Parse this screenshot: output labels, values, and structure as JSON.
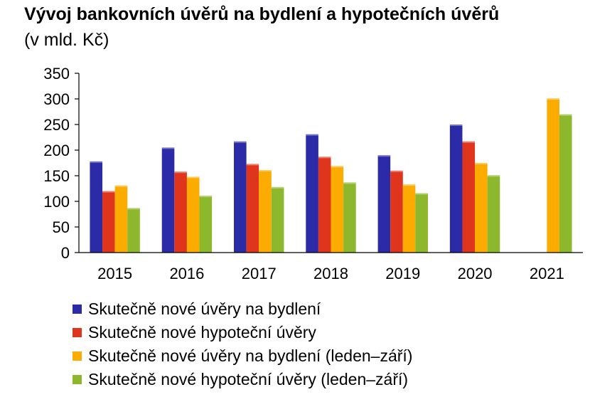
{
  "header": {
    "title": "Vývoj bankovních úvěrů na bydlení a hypotečních úvěrů",
    "subtitle": "(v mld. Kč)"
  },
  "chart_data": {
    "type": "bar",
    "title": "Vývoj bankovních úvěrů na bydlení a hypotečních úvěrů",
    "subtitle": "(v mld. Kč)",
    "categories": [
      "2015",
      "2016",
      "2017",
      "2018",
      "2019",
      "2020",
      "2021"
    ],
    "ylim": [
      0,
      350
    ],
    "yticks": [
      0,
      50,
      100,
      150,
      200,
      250,
      300,
      350
    ],
    "grid": false,
    "legend_position": "bottom",
    "series": [
      {
        "name": "Skutečně nové úvěry na bydlení",
        "color": "#2b2ba8",
        "values": [
          178,
          205,
          217,
          231,
          190,
          250,
          null
        ]
      },
      {
        "name": "Skutečně nové hypoteční úvěry",
        "color": "#e0351d",
        "values": [
          120,
          158,
          173,
          187,
          160,
          217,
          null
        ]
      },
      {
        "name": "Skutečně nové úvěry na bydlení (leden–září)",
        "color": "#fcac00",
        "values": [
          131,
          148,
          161,
          169,
          133,
          175,
          301
        ]
      },
      {
        "name": "Skutečně nové hypoteční úvěry (leden–září)",
        "color": "#8db82e",
        "values": [
          87,
          111,
          128,
          137,
          116,
          151,
          270
        ]
      }
    ]
  }
}
